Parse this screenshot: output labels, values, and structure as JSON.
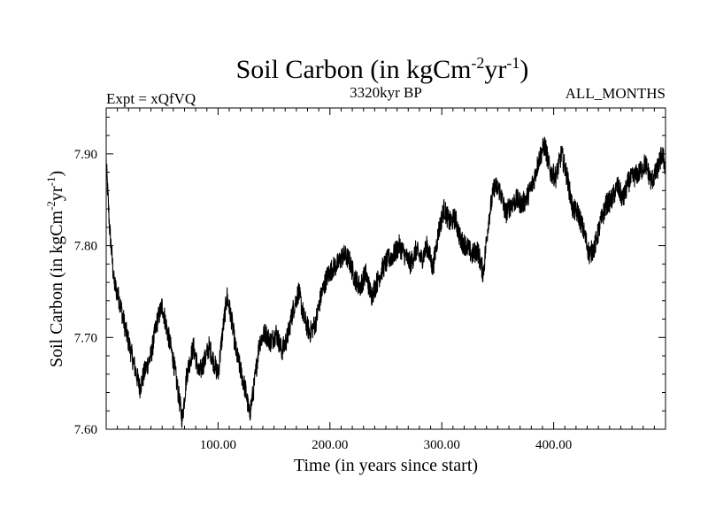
{
  "chart_data": {
    "type": "line",
    "title": {
      "main": "Soil Carbon (in kgCm",
      "sup1": "-2",
      "mid": "yr",
      "sup2": "-1",
      "end": ")"
    },
    "subtitle_left": "Expt = xQfVQ",
    "subtitle_center": "3320kyr BP",
    "subtitle_right": "ALL_MONTHS",
    "xlabel": "Time (in years since start)",
    "ylabel": {
      "main": "Soil Carbon (in kgCm",
      "sup1": "-2",
      "mid": "yr",
      "sup2": "-1",
      "end": ")"
    },
    "xlim": [
      0,
      500
    ],
    "ylim": [
      7.6,
      7.95
    ],
    "x_ticks": [
      {
        "value": 100,
        "label": "100.00"
      },
      {
        "value": 200,
        "label": "200.00"
      },
      {
        "value": 300,
        "label": "300.00"
      },
      {
        "value": 400,
        "label": "400.00"
      }
    ],
    "y_ticks": [
      {
        "value": 7.6,
        "label": "7.60"
      },
      {
        "value": 7.7,
        "label": "7.70"
      },
      {
        "value": 7.8,
        "label": "7.80"
      },
      {
        "value": 7.9,
        "label": "7.90"
      }
    ],
    "series": [
      {
        "name": "Soil Carbon",
        "color": "#000000",
        "x": [
          0,
          3,
          7,
          12,
          17,
          22,
          27,
          30,
          35,
          40,
          45,
          50,
          55,
          60,
          65,
          68,
          72,
          78,
          83,
          88,
          92,
          97,
          100,
          104,
          108,
          112,
          116,
          120,
          125,
          128,
          132,
          137,
          142,
          147,
          152,
          157,
          162,
          167,
          172,
          177,
          182,
          187,
          192,
          197,
          202,
          207,
          212,
          217,
          222,
          227,
          232,
          237,
          242,
          247,
          252,
          257,
          262,
          267,
          272,
          277,
          282,
          287,
          292,
          297,
          302,
          307,
          312,
          317,
          322,
          327,
          332,
          337,
          342,
          347,
          352,
          357,
          362,
          367,
          372,
          377,
          382,
          387,
          392,
          397,
          402,
          407,
          412,
          417,
          422,
          427,
          432,
          437,
          442,
          447,
          452,
          457,
          462,
          467,
          472,
          477,
          482,
          487,
          492,
          497,
          500
        ],
        "values": [
          7.89,
          7.82,
          7.76,
          7.74,
          7.71,
          7.685,
          7.66,
          7.645,
          7.665,
          7.68,
          7.715,
          7.735,
          7.705,
          7.675,
          7.635,
          7.61,
          7.66,
          7.69,
          7.66,
          7.675,
          7.69,
          7.67,
          7.66,
          7.705,
          7.745,
          7.72,
          7.685,
          7.665,
          7.64,
          7.615,
          7.645,
          7.695,
          7.705,
          7.695,
          7.705,
          7.685,
          7.7,
          7.73,
          7.75,
          7.72,
          7.705,
          7.715,
          7.745,
          7.765,
          7.775,
          7.78,
          7.79,
          7.785,
          7.765,
          7.755,
          7.77,
          7.745,
          7.76,
          7.775,
          7.785,
          7.79,
          7.8,
          7.79,
          7.78,
          7.795,
          7.785,
          7.8,
          7.775,
          7.815,
          7.84,
          7.825,
          7.83,
          7.805,
          7.8,
          7.79,
          7.795,
          7.77,
          7.83,
          7.865,
          7.86,
          7.835,
          7.845,
          7.85,
          7.845,
          7.855,
          7.87,
          7.895,
          7.91,
          7.88,
          7.875,
          7.9,
          7.875,
          7.84,
          7.835,
          7.815,
          7.79,
          7.8,
          7.825,
          7.845,
          7.85,
          7.865,
          7.85,
          7.87,
          7.875,
          7.88,
          7.89,
          7.87,
          7.88,
          7.9,
          7.885
        ]
      }
    ]
  }
}
